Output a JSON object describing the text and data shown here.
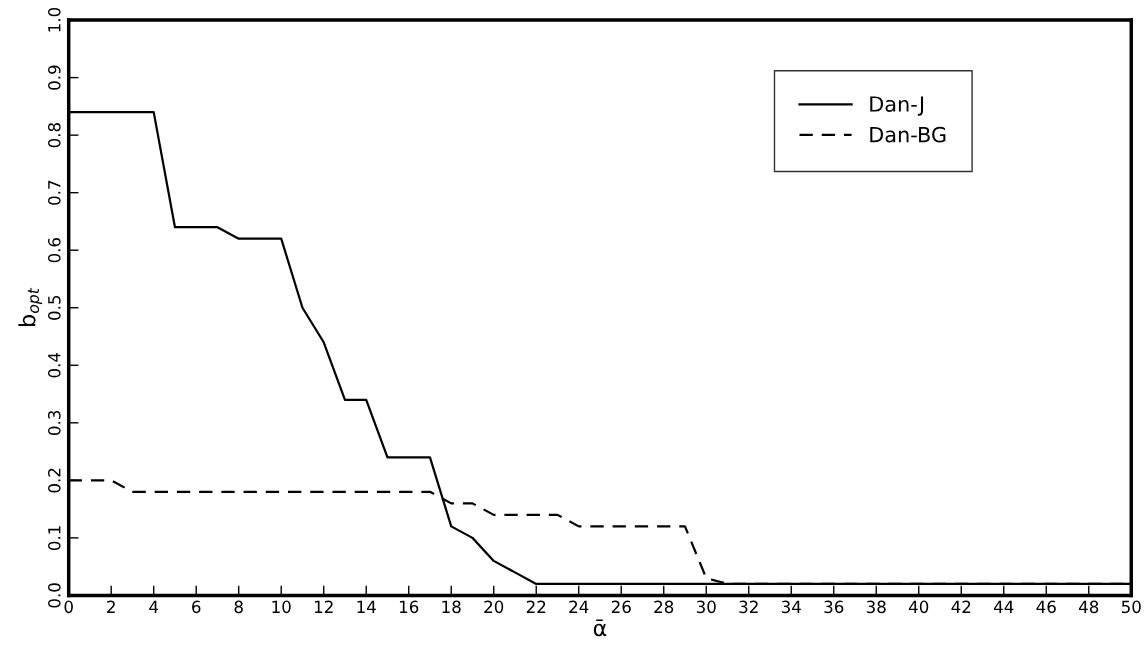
{
  "chart_data": {
    "type": "line",
    "xlabel": "ᾱ",
    "ylabel": "b$_{opt}$",
    "xlim": [
      0,
      50
    ],
    "ylim": [
      0,
      1
    ],
    "xticks": [
      0,
      2,
      4,
      6,
      8,
      10,
      12,
      14,
      16,
      18,
      20,
      22,
      24,
      26,
      28,
      30,
      32,
      34,
      36,
      38,
      40,
      42,
      44,
      46,
      48,
      50
    ],
    "yticks": [
      {
        "value": 0,
        "label": "0.0"
      },
      {
        "value": 0.1,
        "label": "0.1"
      },
      {
        "value": 0.2,
        "label": "0.2"
      },
      {
        "value": 0.3,
        "label": "0.3"
      },
      {
        "value": 0.4,
        "label": "0.4"
      },
      {
        "value": 0.5,
        "label": "0.5"
      },
      {
        "value": 0.6,
        "label": "0.6"
      },
      {
        "value": 0.7,
        "label": "0.7"
      },
      {
        "value": 0.8,
        "label": "0.8"
      },
      {
        "value": 0.9,
        "label": "0.9"
      },
      {
        "value": 1,
        "label": "1.0"
      }
    ],
    "grid": false,
    "legend": "top right",
    "marker": "none",
    "series": [
      {
        "name": "Dan-J",
        "color": "#000000",
        "line_style": "solid",
        "x": [
          0,
          4,
          5,
          7,
          8,
          10,
          11,
          12,
          13,
          14,
          15,
          17,
          18,
          19,
          20,
          21,
          22,
          50
        ],
        "values": [
          0.84,
          0.84,
          0.64,
          0.64,
          0.62,
          0.62,
          0.5,
          0.44,
          0.34,
          0.34,
          0.24,
          0.24,
          0.12,
          0.1,
          0.06,
          0.04,
          0.02,
          0.02
        ]
      },
      {
        "name": "Dan-BG",
        "color": "#000000",
        "line_style": "dashed",
        "x": [
          0,
          2,
          3,
          17,
          18,
          19,
          20,
          23,
          24,
          29,
          30,
          31,
          50
        ],
        "values": [
          0.2,
          0.2,
          0.18,
          0.18,
          0.16,
          0.16,
          0.14,
          0.14,
          0.12,
          0.12,
          0.03,
          0.02,
          0.02
        ]
      }
    ]
  }
}
